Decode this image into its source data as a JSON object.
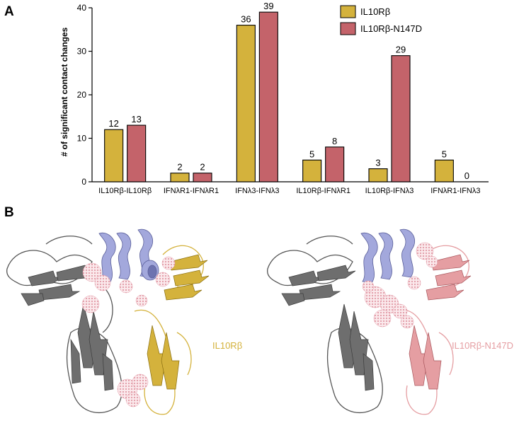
{
  "panels": {
    "a": "A",
    "b": "B"
  },
  "colors": {
    "il10rb": "#d4b23c",
    "n147d": "#c4636a",
    "ifnlr1": "#6e6e6e",
    "ifnl3": "#a3a8dc",
    "contacts": "#e9a3ad"
  },
  "chart_data": {
    "type": "bar",
    "title": "",
    "xlabel": "",
    "ylabel": "# of significant contact changes",
    "ylim": [
      0,
      40
    ],
    "yticks": [
      0,
      10,
      20,
      30,
      40
    ],
    "categories": [
      "IL10Rβ-IL10Rβ",
      "IFNλR1-IFNλR1",
      "IFNλ3-IFNλ3",
      "IL10Rβ-IFNλR1",
      "IL10Rβ-IFNλ3",
      "IFNλR1-IFNλ3"
    ],
    "series": [
      {
        "name": "IL10Rβ",
        "color": "#d4b23c",
        "values": [
          12,
          2,
          36,
          5,
          3,
          5
        ]
      },
      {
        "name": "IL10Rβ-N147D",
        "color": "#c4636a",
        "values": [
          13,
          2,
          39,
          8,
          29,
          0
        ]
      }
    ],
    "legend": "top-right",
    "grid": false
  },
  "structures": [
    {
      "label": "IL10Rβ",
      "color": "#d4b23c"
    },
    {
      "label": "IL10Rβ-N147D",
      "color": "#e59ea2"
    }
  ]
}
